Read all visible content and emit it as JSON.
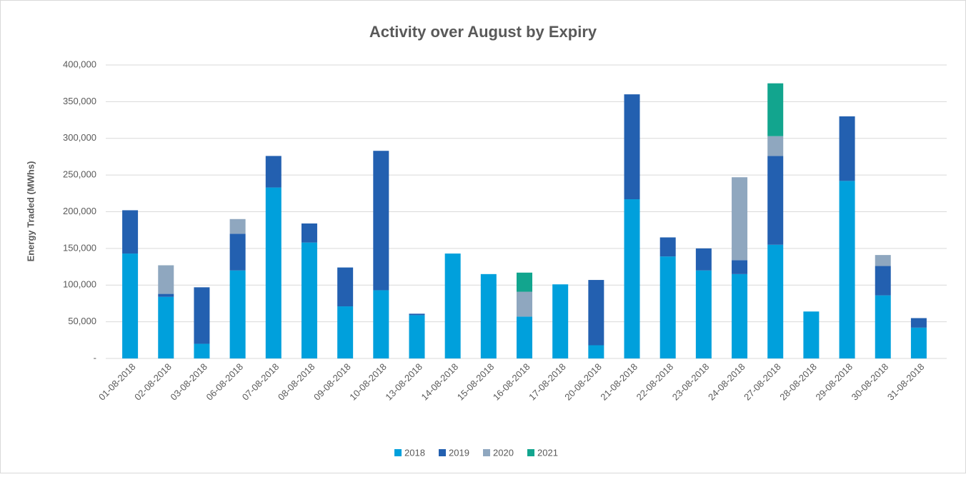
{
  "chart_data": {
    "type": "stacked_bar",
    "title": "Activity over August by Expiry",
    "y_label": "Energy Traded (MWhs)",
    "categories": [
      "01-08-2018",
      "02-08-2018",
      "03-08-2018",
      "06-08-2018",
      "07-08-2018",
      "08-08-2018",
      "09-08-2018",
      "10-08-2018",
      "13-08-2018",
      "14-08-2018",
      "15-08-2018",
      "16-08-2018",
      "17-08-2018",
      "20-08-2018",
      "21-08-2018",
      "22-08-2018",
      "23-08-2018",
      "24-08-2018",
      "27-08-2018",
      "28-08-2018",
      "29-08-2018",
      "30-08-2018",
      "31-08-2018"
    ],
    "series": [
      {
        "name": "2018",
        "color": "#00a0dc",
        "values": [
          143000,
          84000,
          20000,
          120000,
          233000,
          158000,
          71000,
          93000,
          59000,
          143000,
          115000,
          57000,
          101000,
          18000,
          217000,
          139000,
          120000,
          115000,
          155000,
          64000,
          242000,
          86000,
          42000
        ]
      },
      {
        "name": "2019",
        "color": "#2360b0",
        "values": [
          59000,
          4000,
          77000,
          50000,
          43000,
          26000,
          53000,
          190000,
          2000,
          null,
          null,
          null,
          null,
          89000,
          143000,
          26000,
          30000,
          19000,
          121000,
          null,
          88000,
          40000,
          13000
        ]
      },
      {
        "name": "2020",
        "color": "#8fa7bf",
        "values": [
          null,
          39000,
          null,
          20000,
          null,
          null,
          null,
          null,
          null,
          null,
          null,
          34000,
          null,
          null,
          null,
          null,
          null,
          113000,
          27000,
          null,
          null,
          15000,
          null
        ]
      },
      {
        "name": "2021",
        "color": "#12a58e",
        "values": [
          null,
          null,
          null,
          null,
          null,
          null,
          null,
          null,
          null,
          null,
          null,
          26000,
          null,
          null,
          null,
          null,
          null,
          null,
          72000,
          null,
          null,
          null,
          null
        ]
      }
    ],
    "ylim": [
      0,
      400000
    ],
    "yticks": [
      {
        "value": 0,
        "label": "-"
      },
      {
        "value": 50000,
        "label": "50,000"
      },
      {
        "value": 100000,
        "label": "100,000"
      },
      {
        "value": 150000,
        "label": "150,000"
      },
      {
        "value": 200000,
        "label": "200,000"
      },
      {
        "value": 250000,
        "label": "250,000"
      },
      {
        "value": 300000,
        "label": "300,000"
      },
      {
        "value": 350000,
        "label": "350,000"
      },
      {
        "value": 400000,
        "label": "400,000"
      }
    ],
    "grid": true,
    "legend": "bottom"
  }
}
